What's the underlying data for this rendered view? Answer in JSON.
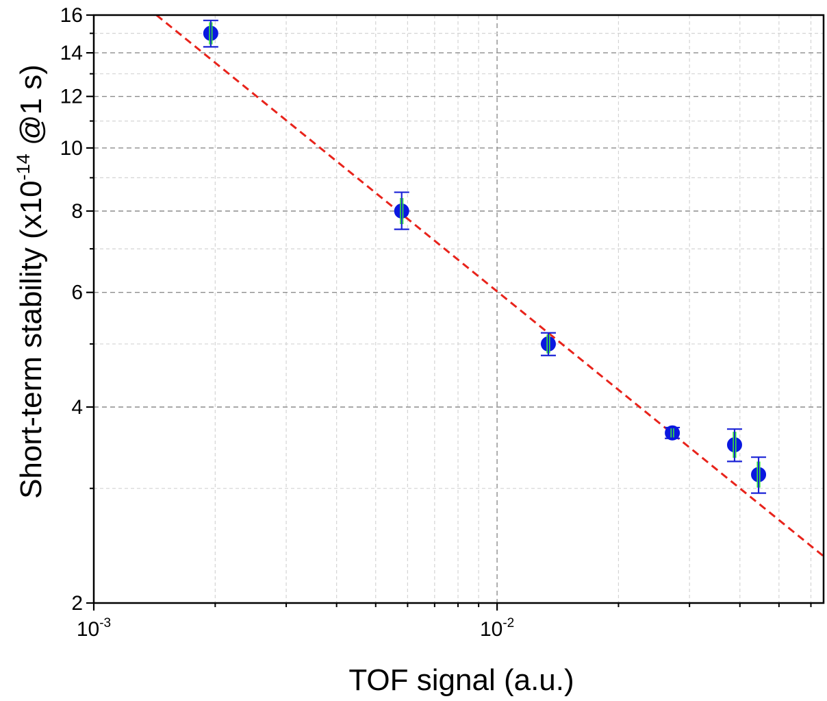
{
  "chart_data": {
    "type": "scatter",
    "title": "",
    "xlabel": "TOF signal (a.u.)",
    "ylabel": {
      "prefix": "Short-term stability (x10",
      "exponent": "-14",
      "suffix": " @1 s)"
    },
    "x_scale": "log",
    "y_scale": "log",
    "xlim": [
      0.001,
      0.0645
    ],
    "ylim": [
      2,
      16
    ],
    "grid": true,
    "legend": "none",
    "x_ticks": [
      {
        "value": 0.001,
        "base": "10",
        "exp": "-3"
      },
      {
        "value": 0.01,
        "base": "10",
        "exp": "-2"
      }
    ],
    "y_ticks": [
      2,
      4,
      6,
      8,
      10,
      12,
      14,
      16
    ],
    "y_tick_labels": [
      "2",
      "4",
      "6",
      "8",
      "10",
      "12",
      "14",
      "16"
    ],
    "series": [
      {
        "type": "scatter",
        "marker_color": "#0a18e0",
        "marker_edge": "#00b050",
        "points": [
          {
            "x": 0.00195,
            "y": 15.0,
            "y_err_low": 14.3,
            "y_err_high": 15.7
          },
          {
            "x": 0.0058,
            "y": 8.0,
            "y_err_low": 7.5,
            "y_err_high": 8.55
          },
          {
            "x": 0.0134,
            "y": 5.0,
            "y_err_low": 4.8,
            "y_err_high": 5.2
          },
          {
            "x": 0.0272,
            "y": 3.65,
            "y_err_low": 3.58,
            "y_err_high": 3.72
          },
          {
            "x": 0.0388,
            "y": 3.5,
            "y_err_low": 3.3,
            "y_err_high": 3.7
          },
          {
            "x": 0.0445,
            "y": 3.15,
            "y_err_low": 2.95,
            "y_err_high": 3.35
          }
        ]
      },
      {
        "type": "line",
        "style": "dashed",
        "color": "#e8231b",
        "x": [
          0.00143,
          0.0645
        ],
        "y": [
          16.0,
          2.36
        ]
      }
    ],
    "colors": {
      "marker": "#0a18e0",
      "error_bar": "#1a22d6",
      "inner_error_bar": "#39e639",
      "fit_line": "#e8231b",
      "grid_major": "#8c8c8c",
      "grid_minor": "#d4d4d4"
    }
  }
}
